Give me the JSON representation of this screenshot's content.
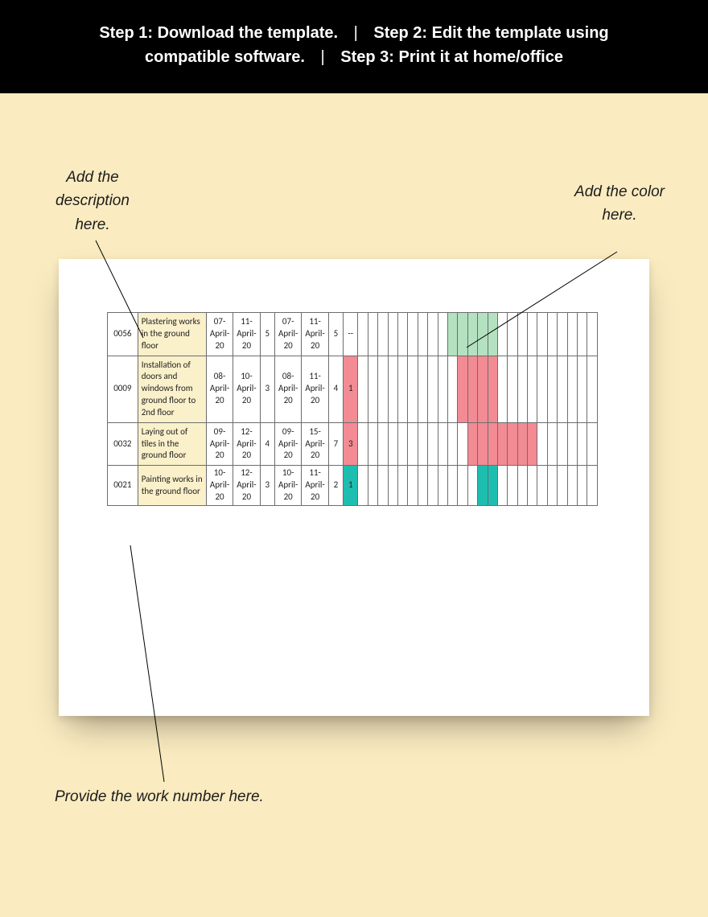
{
  "banner": {
    "step1": "Step 1: Download the template.",
    "step2": "Step 2: Edit the template using compatible software.",
    "step3": "Step 3: Print it at home/office",
    "sep": "|"
  },
  "annotations": {
    "desc": "Add the description here.",
    "color": "Add the color here.",
    "worknum": "Provide the work number here."
  },
  "colors": {
    "desc_bg": "#faf0ca",
    "diff_bg": "#f28b94",
    "gantt_green": "#b4e2c1",
    "gantt_red": "#f28b94",
    "gantt_teal": "#1dbeb0",
    "border": "#6d6d6d"
  },
  "gantt_columns": 24,
  "rows": [
    {
      "num": "0056",
      "desc": "Plastering works in the ground floor",
      "d1": "07-April-20",
      "d2": "11-April-20",
      "dur1": "5",
      "d3": "07-April-20",
      "d4": "11-April-20",
      "dur2": "5",
      "diff": "--",
      "diff_bg": null,
      "bars": [
        {
          "start": 10,
          "end": 14,
          "color": "#b4e2c1"
        }
      ]
    },
    {
      "num": "0009",
      "desc": "Installation of doors and windows from ground floor to 2nd floor",
      "d1": "08-April-20",
      "d2": "10-April-20",
      "dur1": "3",
      "d3": "08-April-20",
      "d4": "11-April-20",
      "dur2": "4",
      "diff": "1",
      "diff_bg": "#f28b94",
      "bars": [
        {
          "start": 11,
          "end": 14,
          "color": "#f28b94"
        }
      ]
    },
    {
      "num": "0032",
      "desc": "Laying out of tiles in the ground floor",
      "d1": "09-April-20",
      "d2": "12-April-20",
      "dur1": "4",
      "d3": "09-April-20",
      "d4": "15-April-20",
      "dur2": "7",
      "diff": "3",
      "diff_bg": "#f28b94",
      "bars": [
        {
          "start": 12,
          "end": 18,
          "color": "#f28b94"
        }
      ]
    },
    {
      "num": "0021",
      "desc": "Painting works in the ground floor",
      "d1": "10-April-20",
      "d2": "12-April-20",
      "dur1": "3",
      "d3": "10-April-20",
      "d4": "11-April-20",
      "dur2": "2",
      "diff": "1",
      "diff_bg": "#1dbeb0",
      "bars": [
        {
          "start": 13,
          "end": 14,
          "color": "#1dbeb0"
        }
      ]
    }
  ]
}
